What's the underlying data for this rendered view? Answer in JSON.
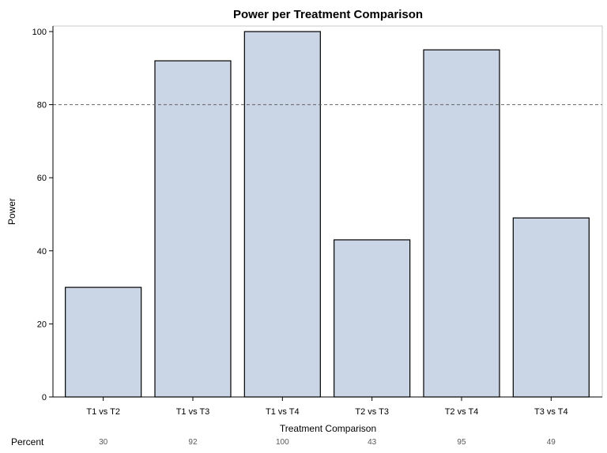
{
  "chart_data": {
    "type": "bar",
    "title": "Power per Treatment Comparison",
    "xlabel": "Treatment Comparison",
    "ylabel": "Power",
    "categories": [
      "T1 vs T2",
      "T1 vs T3",
      "T1 vs T4",
      "T2 vs T3",
      "T2 vs T4",
      "T3 vs T4"
    ],
    "values": [
      30,
      92,
      100,
      43,
      95,
      49
    ],
    "ylim": [
      0,
      100
    ],
    "yticks": [
      0,
      20,
      40,
      60,
      80,
      100
    ],
    "reference_line": {
      "value": 80,
      "style": "dashed"
    },
    "grid": false,
    "legend": "none",
    "bar_color": "#CAD5E5",
    "bar_edge_color": "#000000",
    "axis_table": {
      "label": "Percent",
      "values": [
        "30",
        "92",
        "100",
        "43",
        "95",
        "49"
      ]
    }
  }
}
